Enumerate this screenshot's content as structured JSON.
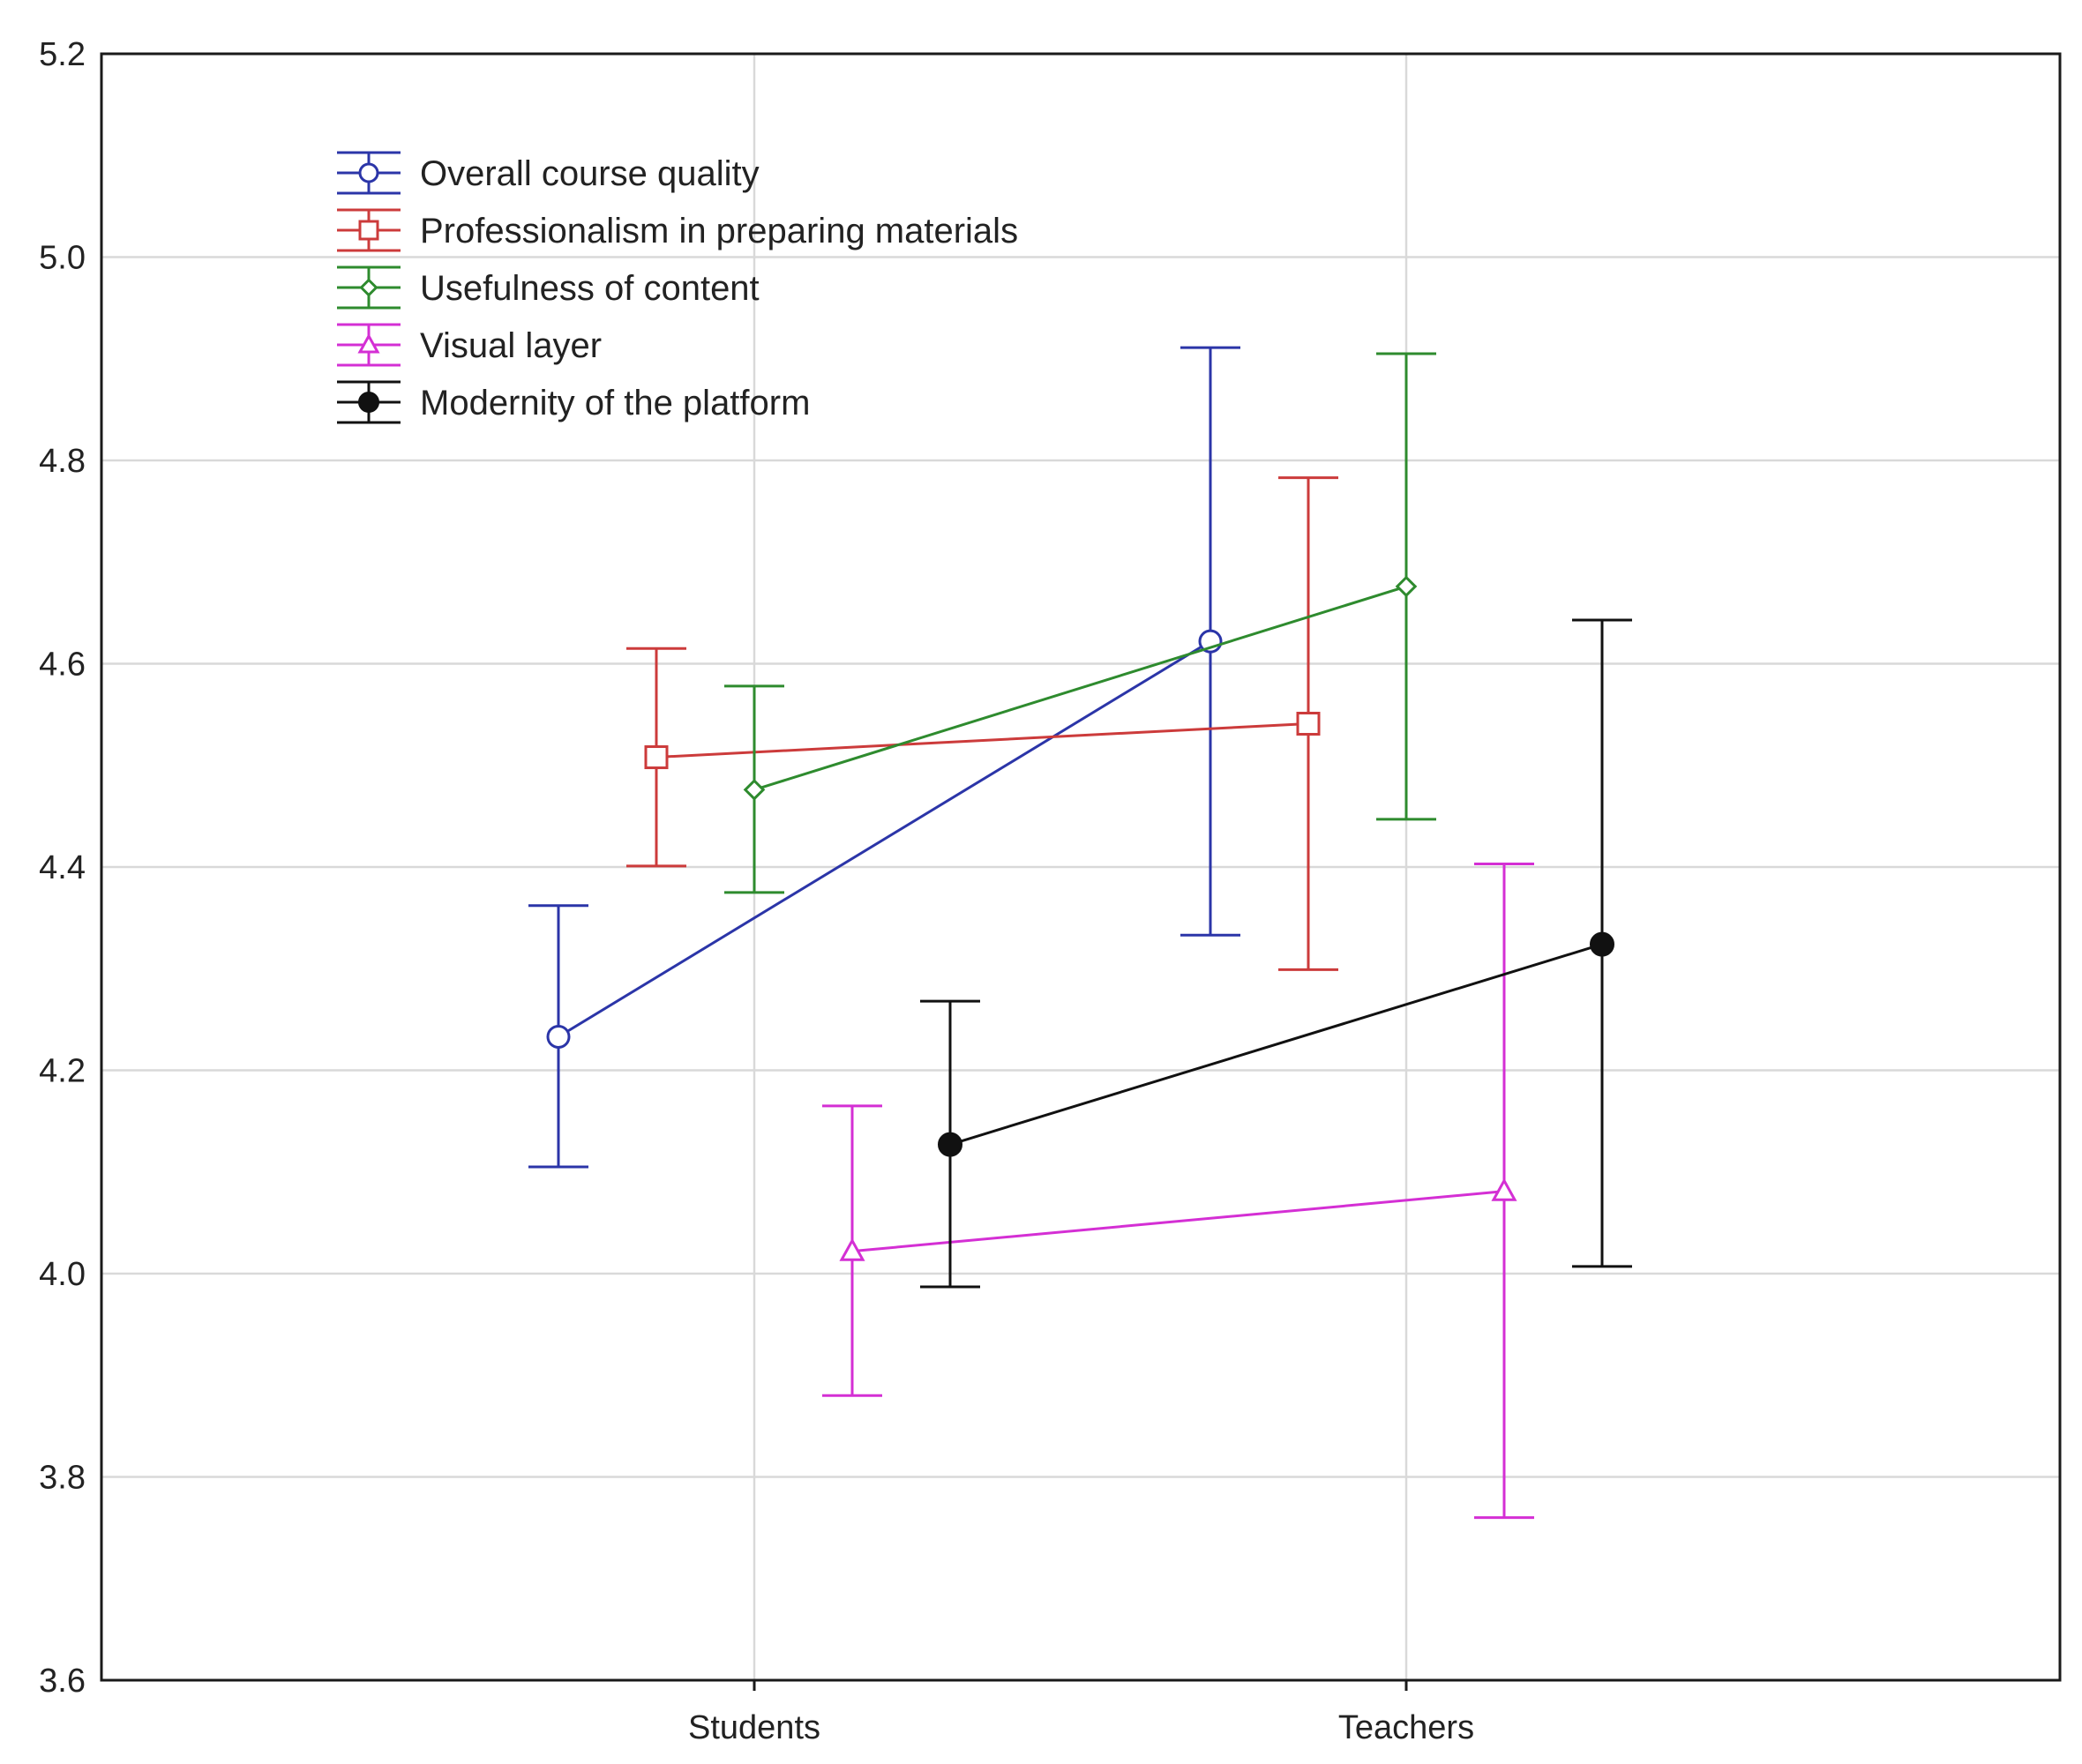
{
  "chart_data": {
    "type": "line",
    "title": "",
    "xlabel": "",
    "ylabel": "",
    "categories": [
      "Students",
      "Teachers"
    ],
    "ylim": [
      3.6,
      5.2
    ],
    "yticks": [
      "3.6",
      "3.8",
      "4.0",
      "4.2",
      "4.4",
      "4.6",
      "4.8",
      "5.0",
      "5.2"
    ],
    "grid": true,
    "legend_position": "top-left",
    "error_bars": true,
    "series": [
      {
        "name": "Overall course quality",
        "color": "#2b35a8",
        "marker": "circle-open",
        "values": [
          4.233,
          4.622
        ],
        "lower": [
          4.105,
          4.333
        ],
        "upper": [
          4.362,
          4.911
        ]
      },
      {
        "name": "Professionalism in preparing materials",
        "color": "#cc3b3b",
        "marker": "square-open",
        "values": [
          4.508,
          4.541
        ],
        "lower": [
          4.401,
          4.299
        ],
        "upper": [
          4.615,
          4.783
        ]
      },
      {
        "name": "Usefulness of content",
        "color": "#2e8b2e",
        "marker": "diamond-open",
        "values": [
          4.476,
          4.676
        ],
        "lower": [
          4.375,
          4.447
        ],
        "upper": [
          4.578,
          4.905
        ]
      },
      {
        "name": "Visual layer",
        "color": "#d42fd4",
        "marker": "triangle-open",
        "values": [
          4.022,
          4.081
        ],
        "lower": [
          3.88,
          3.76
        ],
        "upper": [
          4.165,
          4.403
        ]
      },
      {
        "name": "Modernity of the platform",
        "color": "#111111",
        "marker": "circle-filled",
        "values": [
          4.127,
          4.324
        ],
        "lower": [
          3.987,
          4.007
        ],
        "upper": [
          4.268,
          4.643
        ]
      }
    ]
  }
}
